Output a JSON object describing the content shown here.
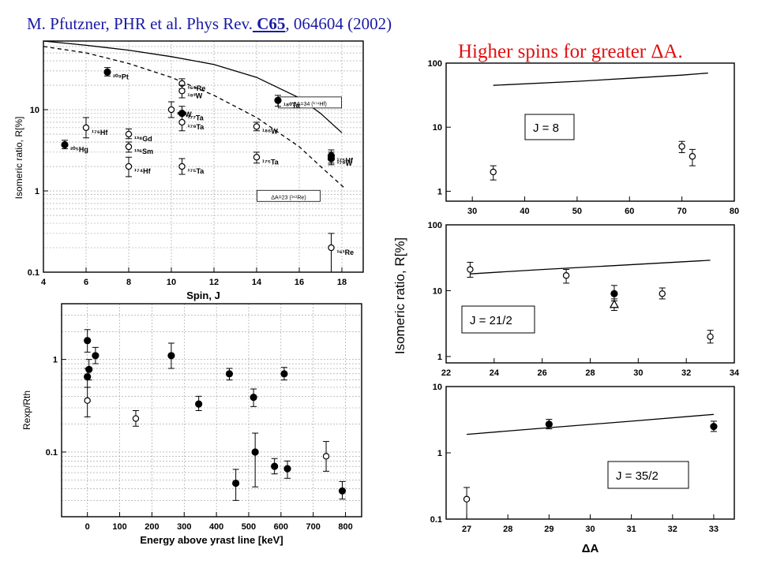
{
  "header": {
    "reference_prefix": "M. Pfutzner, PHR et al. Phys Rev.",
    "reference_volume": " C65",
    "reference_suffix": ", 064604 (2002)",
    "headline": "Higher spins for greater ΔA."
  },
  "colors": {
    "reference": "#1a1aa6",
    "headline": "#e01010",
    "marks": "#000000"
  },
  "chart_data": [
    {
      "id": "spin",
      "type": "scatter",
      "xlabel": "Spin, J",
      "ylabel": "Isomeric ratio, R[%]",
      "xlim": [
        4,
        19
      ],
      "ylim": [
        0.1,
        70
      ],
      "yscale": "log",
      "xticks": [
        4,
        6,
        8,
        10,
        12,
        14,
        16,
        18
      ],
      "yticks": [
        {
          "v": 0.1,
          "t": "0.1"
        },
        {
          "v": 1,
          "t": "1"
        },
        {
          "v": 10,
          "t": "10"
        }
      ],
      "grid": true,
      "curves": [
        {
          "style": "solid",
          "points": [
            [
              4,
              70
            ],
            [
              6,
              62
            ],
            [
              8,
              54
            ],
            [
              10,
              45
            ],
            [
              12,
              36
            ],
            [
              14,
              25
            ],
            [
              16,
              14
            ],
            [
              17,
              9
            ],
            [
              18,
              5.2
            ]
          ]
        },
        {
          "style": "dashed",
          "points": [
            [
              4,
              60
            ],
            [
              6,
              50
            ],
            [
              8,
              37
            ],
            [
              10,
              25
            ],
            [
              12,
              15
            ],
            [
              14,
              8
            ],
            [
              16,
              3.5
            ],
            [
              17,
              2
            ],
            [
              18.1,
              1.1
            ]
          ]
        }
      ],
      "annotations": [
        {
          "text": "ΔA=34 (¹⁷⁴Hf)",
          "x": 16.5,
          "y": 12
        },
        {
          "text": "ΔA=23 (¹⁶¹Re)",
          "x": 15.5,
          "y": 0.85
        }
      ],
      "points": [
        {
          "x": 5,
          "y": 3.7,
          "err": [
            3.3,
            4.2
          ],
          "filled": true,
          "label": "²⁰⁵Hg"
        },
        {
          "x": 7,
          "y": 29,
          "err": [
            26,
            33
          ],
          "filled": true,
          "label": "²⁰⁹Pt"
        },
        {
          "x": 6,
          "y": 6,
          "err": [
            4.5,
            8
          ],
          "filled": false,
          "label": "¹⁷⁶Hf"
        },
        {
          "x": 8,
          "y": 5,
          "err": [
            4.4,
            5.8
          ],
          "filled": false,
          "label": "¹³⁸Gd"
        },
        {
          "x": 8,
          "y": 3.5,
          "err": [
            3.0,
            4.0
          ],
          "filled": false,
          "label": "¹³⁶Sm"
        },
        {
          "x": 8,
          "y": 2,
          "err": [
            1.5,
            2.6
          ],
          "filled": false,
          "label": "¹⁷⁴Hf"
        },
        {
          "x": 10,
          "y": 10,
          "err": [
            8,
            12.5
          ],
          "filled": false,
          "label": "¹⁸²W"
        },
        {
          "x": 10.5,
          "y": 9,
          "err": [
            7,
            11
          ],
          "filled": true,
          "label": "¹⁷⁷Ta"
        },
        {
          "x": 10.5,
          "y": 21,
          "err": [
            18,
            24
          ],
          "filled": false,
          "label": "¹⁶⁵Re"
        },
        {
          "x": 10.5,
          "y": 17,
          "err": [
            14,
            20
          ],
          "filled": false,
          "label": "¹⁸³W"
        },
        {
          "x": 10.5,
          "y": 7,
          "err": [
            5.5,
            9
          ],
          "filled": false,
          "label": "¹⁷⁹Ta"
        },
        {
          "x": 10.5,
          "y": 2,
          "err": [
            1.6,
            2.5
          ],
          "filled": false,
          "label": "¹⁷⁵Ta"
        },
        {
          "x": 14,
          "y": 6.2,
          "err": [
            5.5,
            7
          ],
          "filled": false,
          "label": "¹⁸⁶W"
        },
        {
          "x": 14,
          "y": 2.6,
          "err": [
            2.2,
            3.0
          ],
          "filled": false,
          "label": "¹⁷⁵Ta"
        },
        {
          "x": 15,
          "y": 13,
          "err": [
            11,
            15
          ],
          "filled": true,
          "label": "¹⁸⁰Ta"
        },
        {
          "x": 17.5,
          "y": 2.7,
          "err": [
            2.2,
            3.2
          ],
          "filled": true,
          "label": "¹⁷⁵Hf"
        },
        {
          "x": 17.5,
          "y": 2.5,
          "err": [
            2.1,
            3.0
          ],
          "filled": true,
          "label": "¹⁷⁹W"
        },
        {
          "x": 17.5,
          "y": 0.2,
          "err": [
            0.1,
            0.3
          ],
          "filled": false,
          "label": "¹⁶¹Re"
        }
      ]
    },
    {
      "id": "energy",
      "type": "scatter",
      "xlabel": "Energy above yrast line [keV]",
      "ylabel": "Rexp/Rth",
      "xlim": [
        -80,
        850
      ],
      "ylim": [
        0.02,
        4
      ],
      "yscale": "log",
      "xticks": [
        0,
        100,
        200,
        300,
        400,
        500,
        600,
        700,
        800
      ],
      "yticks": [
        {
          "v": 0.1,
          "t": "0.1"
        },
        {
          "v": 1,
          "t": "1"
        }
      ],
      "grid": true,
      "points": [
        {
          "x": 0,
          "y": 0.65,
          "err": [
            0.5,
            0.8
          ],
          "filled": true
        },
        {
          "x": 0,
          "y": 1.6,
          "err": [
            1.2,
            2.1
          ],
          "filled": true
        },
        {
          "x": 5,
          "y": 0.78,
          "err": [
            0.6,
            1.0
          ],
          "filled": true
        },
        {
          "x": 0,
          "y": 0.36,
          "err": [
            0.24,
            0.5
          ],
          "filled": false
        },
        {
          "x": 25,
          "y": 1.1,
          "err": [
            0.9,
            1.35
          ],
          "filled": true
        },
        {
          "x": 150,
          "y": 0.23,
          "err": [
            0.19,
            0.28
          ],
          "filled": false
        },
        {
          "x": 260,
          "y": 1.1,
          "err": [
            0.8,
            1.5
          ],
          "filled": true
        },
        {
          "x": 345,
          "y": 0.33,
          "err": [
            0.28,
            0.4
          ],
          "filled": true
        },
        {
          "x": 440,
          "y": 0.7,
          "err": [
            0.6,
            0.8
          ],
          "filled": true
        },
        {
          "x": 460,
          "y": 0.046,
          "err": [
            0.03,
            0.065
          ],
          "filled": true
        },
        {
          "x": 515,
          "y": 0.39,
          "err": [
            0.31,
            0.48
          ],
          "filled": true
        },
        {
          "x": 520,
          "y": 0.1,
          "err": [
            0.042,
            0.16
          ],
          "filled": true
        },
        {
          "x": 580,
          "y": 0.07,
          "err": [
            0.058,
            0.085
          ],
          "filled": true
        },
        {
          "x": 610,
          "y": 0.7,
          "err": [
            0.6,
            0.82
          ],
          "filled": true
        },
        {
          "x": 620,
          "y": 0.066,
          "err": [
            0.052,
            0.08
          ],
          "filled": true
        },
        {
          "x": 740,
          "y": 0.09,
          "err": [
            0.062,
            0.13
          ],
          "filled": false
        },
        {
          "x": 790,
          "y": 0.038,
          "err": [
            0.031,
            0.048
          ],
          "filled": true
        }
      ]
    },
    {
      "id": "dA_J8",
      "type": "scatter",
      "xlabel": "",
      "ylabel": "",
      "legend_box": "J = 8",
      "xlim": [
        25,
        80
      ],
      "ylim": [
        0.7,
        100
      ],
      "yscale": "log",
      "xticks": [
        30,
        40,
        50,
        60,
        70,
        80
      ],
      "yticks": [
        {
          "v": 1,
          "t": "1"
        },
        {
          "v": 10,
          "t": "10"
        },
        {
          "v": 100,
          "t": "100"
        }
      ],
      "curves": [
        {
          "style": "solid",
          "points": [
            [
              34,
              45
            ],
            [
              50,
              52
            ],
            [
              60,
              58
            ],
            [
              70,
              65
            ],
            [
              75,
              70
            ]
          ]
        }
      ],
      "points": [
        {
          "x": 34,
          "y": 2,
          "err": [
            1.5,
            2.5
          ],
          "filled": false
        },
        {
          "x": 70,
          "y": 5,
          "err": [
            4,
            6
          ],
          "filled": false
        },
        {
          "x": 72,
          "y": 3.5,
          "err": [
            2.5,
            4.5
          ],
          "filled": false
        }
      ]
    },
    {
      "id": "dA_J21_2",
      "type": "scatter",
      "xlabel": "",
      "ylabel": "Isomeric ratio, R[%]",
      "legend_box": "J = 21/2",
      "xlim": [
        22,
        34
      ],
      "ylim": [
        0.8,
        100
      ],
      "yscale": "log",
      "xticks": [
        22,
        24,
        26,
        28,
        30,
        32,
        34
      ],
      "yticks": [
        {
          "v": 1,
          "t": "1"
        },
        {
          "v": 10,
          "t": "10"
        },
        {
          "v": 100,
          "t": "100"
        }
      ],
      "curves": [
        {
          "style": "solid",
          "points": [
            [
              23,
              18
            ],
            [
              26,
              21
            ],
            [
              29,
              24
            ],
            [
              33,
              29
            ]
          ]
        }
      ],
      "points": [
        {
          "x": 23,
          "y": 21,
          "err": [
            16,
            27
          ],
          "filled": false
        },
        {
          "x": 27,
          "y": 17,
          "err": [
            13,
            21
          ],
          "filled": false
        },
        {
          "x": 29,
          "y": 9,
          "err": [
            7,
            12
          ],
          "filled": true
        },
        {
          "x": 29,
          "y": 6.2,
          "err": [
            5,
            7.5
          ],
          "filled": false,
          "marker": "triangle"
        },
        {
          "x": 31,
          "y": 9,
          "err": [
            7.5,
            11
          ],
          "filled": false
        },
        {
          "x": 33,
          "y": 2,
          "err": [
            1.6,
            2.5
          ],
          "filled": false
        }
      ]
    },
    {
      "id": "dA_J35_2",
      "type": "scatter",
      "xlabel": "ΔA",
      "ylabel": "",
      "legend_box": "J = 35/2",
      "xlim": [
        26.5,
        33.5
      ],
      "ylim": [
        0.1,
        10
      ],
      "yscale": "log",
      "xticks": [
        27,
        28,
        29,
        30,
        31,
        32,
        33
      ],
      "yticks": [
        {
          "v": 0.1,
          "t": "0.1"
        },
        {
          "v": 1,
          "t": "1"
        },
        {
          "v": 10,
          "t": "10"
        }
      ],
      "curves": [
        {
          "style": "solid",
          "points": [
            [
              27,
              1.9
            ],
            [
              29,
              2.4
            ],
            [
              31,
              3.0
            ],
            [
              33,
              3.8
            ]
          ]
        }
      ],
      "points": [
        {
          "x": 27,
          "y": 0.2,
          "err": [
            0.1,
            0.3
          ],
          "filled": false
        },
        {
          "x": 29,
          "y": 2.7,
          "err": [
            2.3,
            3.2
          ],
          "filled": true
        },
        {
          "x": 33,
          "y": 2.5,
          "err": [
            2.1,
            3.0
          ],
          "filled": true
        }
      ]
    }
  ]
}
